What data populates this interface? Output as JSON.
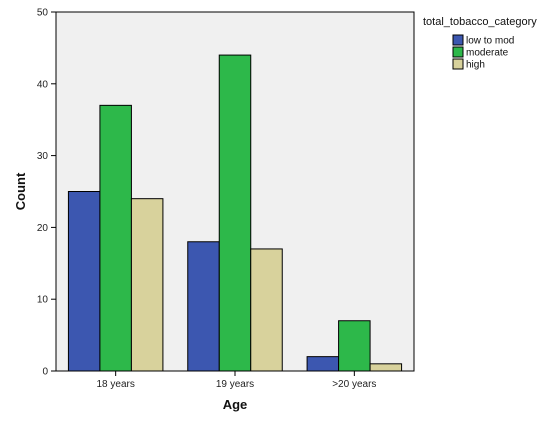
{
  "chart_data": {
    "type": "bar",
    "categories": [
      "18 years",
      "19 years",
      ">20 years"
    ],
    "series": [
      {
        "name": "low to mod",
        "values": [
          25,
          18,
          2
        ],
        "color": "#3c57b0"
      },
      {
        "name": "moderate",
        "values": [
          37,
          44,
          7
        ],
        "color": "#2db84a"
      },
      {
        "name": "high",
        "values": [
          24,
          17,
          1
        ],
        "color": "#d8d29c"
      }
    ],
    "xlabel": "Age",
    "ylabel": "Count",
    "ylim": [
      0,
      50
    ],
    "yticks": [
      "0",
      "10",
      "20",
      "30",
      "40",
      "50"
    ],
    "legend_title": "total_tobacco_category",
    "legend_position": "top-right",
    "grid": false,
    "plot_background": "#f0f0f0"
  }
}
